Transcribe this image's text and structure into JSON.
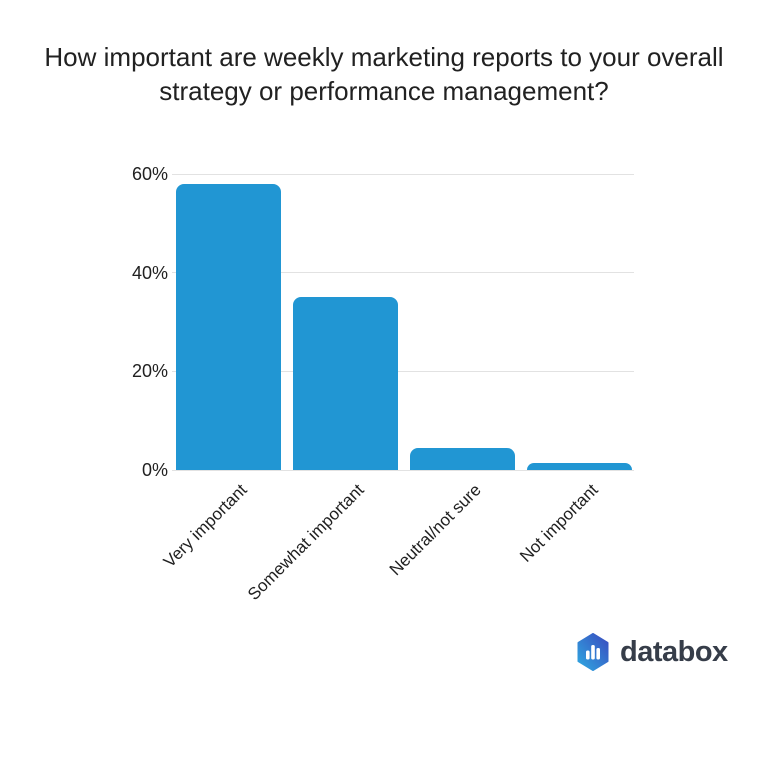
{
  "header": {
    "line1": "How important are weekly marketing reports to your overall",
    "line2": "strategy or performance management?"
  },
  "chart_data": {
    "type": "bar",
    "title": "How important are weekly marketing reports to your overall strategy or performance management?",
    "categories": [
      "Very important",
      "Somewhat important",
      "Neutral/not sure",
      "Not important"
    ],
    "values": [
      58,
      35,
      4.5,
      1.5
    ],
    "xlabel": "",
    "ylabel": "",
    "ylim": [
      0,
      60
    ],
    "ytick_values": [
      0,
      20,
      40,
      60
    ],
    "ytick_labels": [
      "0%",
      "20%",
      "40%",
      "60%"
    ],
    "grid": true,
    "legend": "none",
    "bar_color": "#2196d3",
    "gridline_color": "#e2e2e2",
    "label_color": "#212121"
  },
  "branding": {
    "logo_text": "databox",
    "logo_text_color": "#363d49",
    "logo_gradient_start": "#2fa9e1",
    "logo_gradient_end": "#3a4bbf",
    "logo_bars_color": "#ffffff"
  }
}
